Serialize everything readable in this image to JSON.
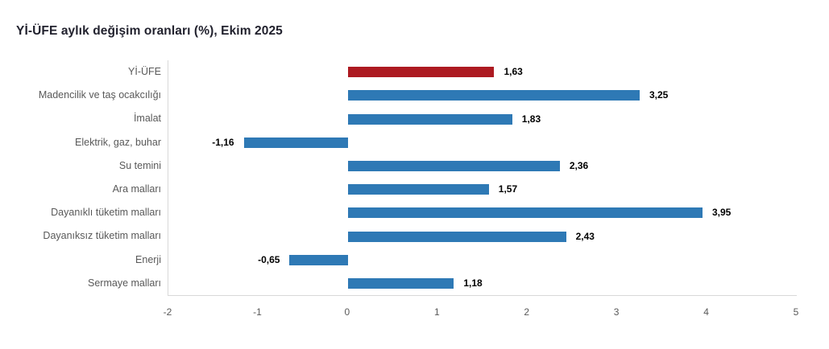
{
  "title": "Yİ-ÜFE aylık değişim oranları (%), Ekim 2025",
  "colors": {
    "bar_default": "#2e79b5",
    "bar_highlight": "#ad1a21",
    "axis_line": "#d9d9d9",
    "category_label": "#595959",
    "tick_label": "#595959",
    "value_label": "#000000",
    "title_text": "#22222e"
  },
  "chart_data": {
    "type": "bar",
    "orientation": "horizontal",
    "title": "Yİ-ÜFE aylık değişim oranları (%), Ekim 2025",
    "categories": [
      "Yİ-ÜFE",
      "Madencilik ve taş ocakcılığı",
      "İmalat",
      "Elektrik, gaz, buhar",
      "Su temini",
      "Ara malları",
      "Dayanıklı tüketim malları",
      "Dayanıksız tüketim malları",
      "Enerji",
      "Sermaye malları"
    ],
    "values": [
      1.63,
      3.25,
      1.83,
      -1.16,
      2.36,
      1.57,
      3.95,
      2.43,
      -0.65,
      1.18
    ],
    "value_labels": [
      "1,63",
      "3,25",
      "1,83",
      "-1,16",
      "2,36",
      "1,57",
      "3,95",
      "2,43",
      "-0,65",
      "1,18"
    ],
    "highlight_index": 0,
    "xlabel": "",
    "ylabel": "",
    "xlim": [
      -2,
      5
    ],
    "xticks": [
      "-2",
      "-1",
      "0",
      "1",
      "2",
      "3",
      "4",
      "5"
    ],
    "grid": false,
    "legend": "none"
  }
}
